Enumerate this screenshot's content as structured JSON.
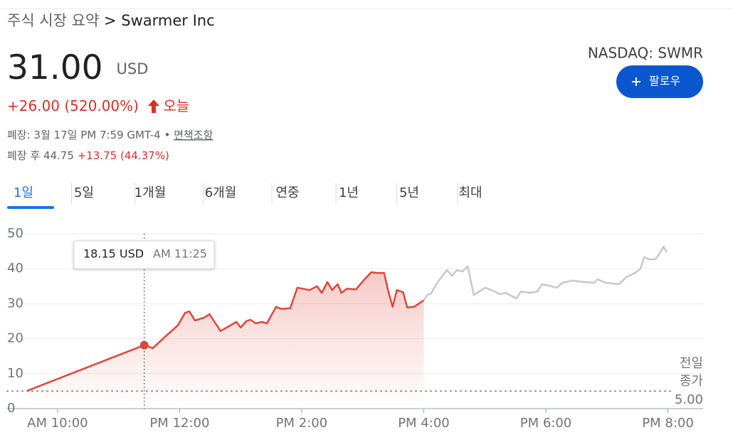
{
  "header": {
    "breadcrumb_parent": "주식 시장 요약",
    "breadcrumb_separator": ">",
    "title": "Swarmer Inc",
    "exchange": "NASDAQ: SWMR",
    "follow_button": "팔로우"
  },
  "quote": {
    "price": "31.00",
    "currency": "USD",
    "change": "+26.00 (520.00%)",
    "period": "오늘",
    "close_info": "폐장: 3월 17일 PM 7:59 GMT-4 •",
    "disclaimer": "면책조항",
    "after_hours_label": "폐장 후",
    "after_hours_price": "44.75",
    "after_hours_change": "+13.75 (44.37%)"
  },
  "tabs": {
    "items": [
      "1일",
      "5일",
      "1개월",
      "6개월",
      "연중",
      "1년",
      "5년",
      "최대"
    ],
    "active": 0
  },
  "chart_data": {
    "type": "line",
    "xlim": [
      9.5,
      20.6
    ],
    "ylim": [
      0,
      50
    ],
    "yticks": [
      0,
      10,
      20,
      30,
      40,
      50
    ],
    "xticks": [
      {
        "value": 10,
        "label": "AM 10:00"
      },
      {
        "value": 12,
        "label": "PM 12:00"
      },
      {
        "value": 14,
        "label": "PM 2:00"
      },
      {
        "value": 16,
        "label": "PM 4:00"
      },
      {
        "value": 18,
        "label": "PM 6:00"
      },
      {
        "value": 20,
        "label": "PM 8:00"
      }
    ],
    "grid": true,
    "series": [
      {
        "color": "#e0453a",
        "area": true,
        "x": [
          9.5,
          11.42,
          11.56,
          11.76,
          11.97,
          12.09,
          12.16,
          12.25,
          12.4,
          12.49,
          12.67,
          12.79,
          12.93,
          13.0,
          13.09,
          13.16,
          13.25,
          13.35,
          13.43,
          13.58,
          13.67,
          13.81,
          13.93,
          14.01,
          14.13,
          14.25,
          14.33,
          14.42,
          14.5,
          14.59,
          14.65,
          14.74,
          14.89,
          15.0,
          15.14,
          15.24,
          15.35,
          15.42,
          15.49,
          15.56,
          15.66,
          15.73,
          15.84,
          16.0
        ],
        "values": [
          5.08,
          18.15,
          17.3,
          20.5,
          23.8,
          27.4,
          27.8,
          25.2,
          26.0,
          27.0,
          22.2,
          23.4,
          24.8,
          23.2,
          25.0,
          25.4,
          24.4,
          24.8,
          24.4,
          29.1,
          28.5,
          28.7,
          34.6,
          34.3,
          33.9,
          35.0,
          33.1,
          36.2,
          33.9,
          35.6,
          33.1,
          34.3,
          34.1,
          36.4,
          39.0,
          38.8,
          38.8,
          33.5,
          29.1,
          33.9,
          33.3,
          28.9,
          29.1,
          31.0
        ]
      },
      {
        "color": "#c8c8c8",
        "area": false,
        "x": [
          16.0,
          16.06,
          16.12,
          16.19,
          16.29,
          16.38,
          16.46,
          16.54,
          16.63,
          16.72,
          16.82,
          17.01,
          17.16,
          17.25,
          17.34,
          17.43,
          17.52,
          17.59,
          17.74,
          17.86,
          17.94,
          18.09,
          18.18,
          18.27,
          18.44,
          18.62,
          18.79,
          18.85,
          18.97,
          19.09,
          19.2,
          19.32,
          19.46,
          19.55,
          19.61,
          19.69,
          19.79,
          19.84,
          19.93,
          19.98
        ],
        "values": [
          31.0,
          32.5,
          32.9,
          35.2,
          37.6,
          39.6,
          38.0,
          39.6,
          39.2,
          40.7,
          32.5,
          34.6,
          33.5,
          32.7,
          33.1,
          32.3,
          31.5,
          33.5,
          33.1,
          33.5,
          35.6,
          35.0,
          34.6,
          36.0,
          36.6,
          36.2,
          36.0,
          37.0,
          36.0,
          35.8,
          35.6,
          37.6,
          38.8,
          40.0,
          43.3,
          42.7,
          42.7,
          43.7,
          46.3,
          44.75
        ]
      }
    ],
    "previous_close": {
      "label_lines": [
        "전일",
        "종가"
      ],
      "value": 5,
      "value_label": "5.00"
    },
    "tooltip": {
      "x": 11.42,
      "value": 18.15,
      "value_label": "18.15 USD",
      "time_label": "AM 11:25"
    }
  }
}
